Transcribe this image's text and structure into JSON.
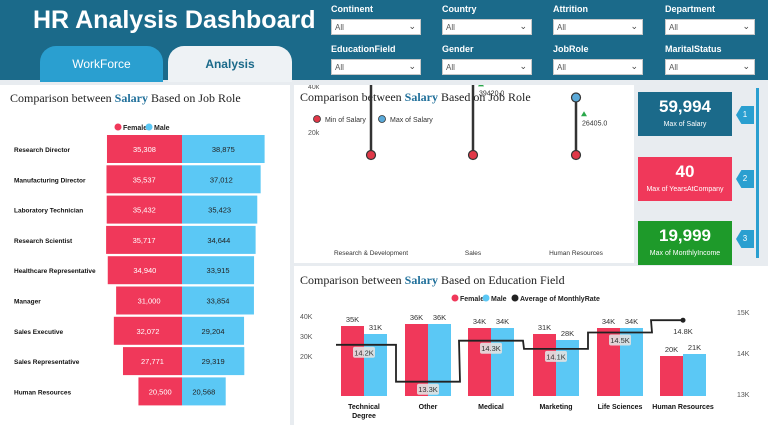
{
  "header": {
    "title": "HR Analysis Dashboard"
  },
  "tabs": [
    {
      "label": "WorkForce"
    },
    {
      "label": "Analysis"
    }
  ],
  "filters": [
    {
      "label": "Continent",
      "value": "All"
    },
    {
      "label": "Country",
      "value": "All"
    },
    {
      "label": "Attrition",
      "value": "All"
    },
    {
      "label": "Department",
      "value": "All"
    },
    {
      "label": "EducationField",
      "value": "All"
    },
    {
      "label": "Gender",
      "value": "All"
    },
    {
      "label": "JobRole",
      "value": "All"
    },
    {
      "label": "MaritalStatus",
      "value": "All"
    }
  ],
  "colors": {
    "header": "#1b6a8a",
    "female": "#f0385a",
    "male": "#5bc8f5",
    "min": "#e03848",
    "max": "#5aa9d8",
    "avg": "#222222",
    "kpi_blue": "#1b6a8a",
    "kpi_red": "#f0385a",
    "kpi_green": "#1e9a2a"
  },
  "kpis": [
    {
      "value": "59,994",
      "label": "Max of Salary",
      "marker": "1"
    },
    {
      "value": "40",
      "label": "Max of YearsAtCompany",
      "marker": "2"
    },
    {
      "value": "19,999",
      "label": "Max of MonthlyIncome",
      "marker": "3"
    }
  ],
  "chart_data": [
    {
      "type": "bar",
      "title": {
        "pre": "Comparison between ",
        "hl": "Salary",
        "post": " Based on Job Role"
      },
      "legend": [
        "Female",
        "Male"
      ],
      "categories": [
        "Research Director",
        "Manufacturing Director",
        "Laboratory Technician",
        "Research Scientist",
        "Healthcare Representative",
        "Manager",
        "Sales Executive",
        "Sales Representative",
        "Human Resources"
      ],
      "series": [
        {
          "name": "Female",
          "values": [
            35308,
            35537,
            35432,
            35717,
            34940,
            31000,
            32072,
            27771,
            20500
          ],
          "labels": [
            "35,308",
            "35,537",
            "35,432",
            "35,717",
            "34,940",
            "31,000",
            "32,072",
            "27,771",
            "20,500"
          ]
        },
        {
          "name": "Male",
          "values": [
            38875,
            37012,
            35423,
            34644,
            33915,
            33854,
            29204,
            29319,
            20568
          ],
          "labels": [
            "38,875",
            "37,012",
            "35,423",
            "34,644",
            "33,915",
            "33,854",
            "29,204",
            "29,319",
            "20,568"
          ]
        }
      ]
    },
    {
      "type": "scatter",
      "title": {
        "pre": "Comparison between ",
        "hl": "Salary",
        "post": " Based on Job Role"
      },
      "legend": [
        "Min of Salary",
        "Max of Salary"
      ],
      "categories": [
        "Research & Development",
        "Sales",
        "Human Resources"
      ],
      "min": [
        10000,
        10000,
        10000
      ],
      "max": [
        60000,
        50000,
        35000
      ],
      "avg": [
        47945.0,
        39420.0,
        26405.0
      ],
      "avg_labels": [
        "47945.0",
        "39420.0",
        "26405.0"
      ],
      "yticks": [
        {
          "v": 20000,
          "label": "20k"
        },
        {
          "v": 40000,
          "label": "40k"
        },
        {
          "v": 60000,
          "label": "60k"
        }
      ],
      "ylim": [
        10000,
        60000
      ]
    },
    {
      "type": "bar",
      "title": {
        "pre": "Comparison between ",
        "hl": "Salary",
        "post": " Based on Education Field"
      },
      "legend": [
        "Female",
        "Male",
        "Average of MonthlyRate"
      ],
      "categories": [
        "Technical Degree",
        "Other",
        "Medical",
        "Marketing",
        "Life Sciences",
        "Human Resources"
      ],
      "series": [
        {
          "name": "Female",
          "values": [
            35000,
            36000,
            34000,
            31000,
            34000,
            20000
          ],
          "labels": [
            "35K",
            "36K",
            "34K",
            "31K",
            "34K",
            "20K"
          ]
        },
        {
          "name": "Male",
          "values": [
            31000,
            36000,
            34000,
            28000,
            34000,
            21000
          ],
          "labels": [
            "31K",
            "36K",
            "34K",
            "28K",
            "34K",
            "21K"
          ]
        },
        {
          "name": "Average of MonthlyRate",
          "values": [
            14200,
            13300,
            14300,
            14100,
            14500,
            14800
          ],
          "labels": [
            "14.2K",
            "13.3K",
            "14.3K",
            "14.1K",
            "14.5K",
            "14.8K"
          ]
        }
      ],
      "yticks_left": [
        {
          "v": 20000,
          "label": "20K"
        },
        {
          "v": 30000,
          "label": "30K"
        },
        {
          "v": 40000,
          "label": "40K"
        }
      ],
      "yticks_right": [
        {
          "v": 13000,
          "label": "13K"
        },
        {
          "v": 14000,
          "label": "14K"
        },
        {
          "v": 15000,
          "label": "15K"
        }
      ]
    }
  ]
}
